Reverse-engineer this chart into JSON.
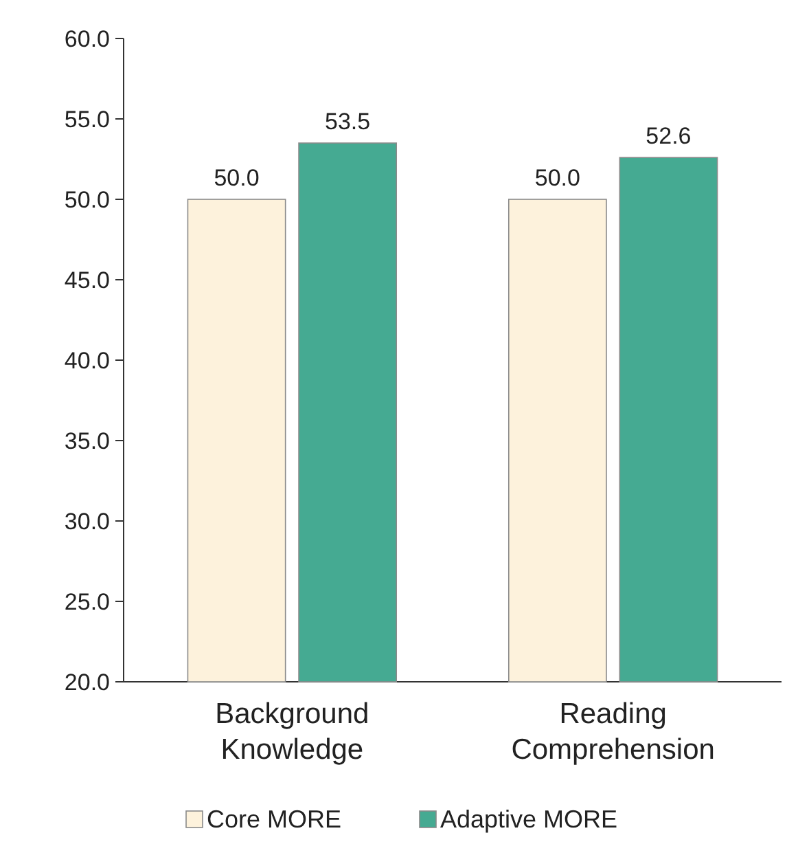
{
  "chart_data": {
    "type": "bar",
    "categories": [
      "Background Knowledge",
      "Reading Comprehension"
    ],
    "series": [
      {
        "name": "Core MORE",
        "color": "#fdf2dc",
        "values": [
          50.0,
          50.0
        ],
        "value_labels": [
          "50.0",
          "50.0"
        ]
      },
      {
        "name": "Adaptive MORE",
        "color": "#45aa92",
        "values": [
          53.5,
          52.6
        ],
        "value_labels": [
          "53.5",
          "52.6"
        ]
      }
    ],
    "ylim": [
      20,
      60
    ],
    "yticks": [
      {
        "value": 20,
        "label": "20.0"
      },
      {
        "value": 25,
        "label": "25.0"
      },
      {
        "value": 30,
        "label": "30.0"
      },
      {
        "value": 35,
        "label": "35.0"
      },
      {
        "value": 40,
        "label": "40.0"
      },
      {
        "value": 45,
        "label": "45.0"
      },
      {
        "value": 50,
        "label": "50.0"
      },
      {
        "value": 55,
        "label": "55.0"
      },
      {
        "value": 60,
        "label": "60.0"
      }
    ],
    "legend": "bottom"
  }
}
